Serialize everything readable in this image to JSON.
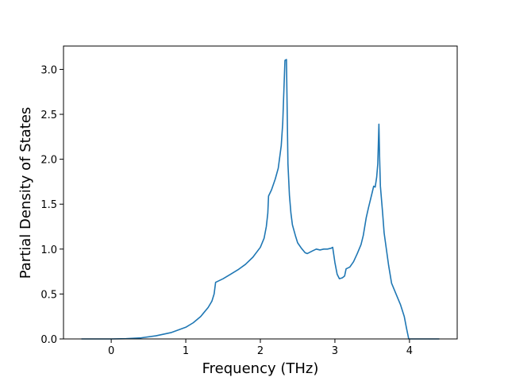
{
  "chart_data": {
    "type": "line",
    "xlabel": "Frequency (THz)",
    "ylabel": "Partial Density of States",
    "color": "#1f77b4",
    "x": [
      -0.4,
      -0.2,
      0,
      0.2,
      0.4,
      0.6,
      0.8,
      1.0,
      1.1,
      1.2,
      1.3,
      1.35,
      1.38,
      1.4,
      1.5,
      1.6,
      1.7,
      1.8,
      1.9,
      2.0,
      2.05,
      2.08,
      2.1,
      2.11,
      2.15,
      2.2,
      2.24,
      2.28,
      2.3,
      2.33,
      2.35,
      2.37,
      2.39,
      2.41,
      2.43,
      2.47,
      2.5,
      2.55,
      2.6,
      2.63,
      2.7,
      2.75,
      2.8,
      2.85,
      2.9,
      2.95,
      2.97,
      3.0,
      3.03,
      3.06,
      3.1,
      3.13,
      3.15,
      3.2,
      3.25,
      3.3,
      3.35,
      3.38,
      3.42,
      3.45,
      3.5,
      3.52,
      3.54,
      3.56,
      3.575,
      3.59,
      3.6,
      3.61,
      3.64,
      3.66,
      3.69,
      3.72,
      3.76,
      3.82,
      3.88,
      3.93,
      3.96,
      3.99,
      4.1,
      4.2,
      4.4
    ],
    "values": [
      0,
      0,
      0,
      0.003,
      0.012,
      0.035,
      0.07,
      0.13,
      0.18,
      0.25,
      0.35,
      0.42,
      0.5,
      0.63,
      0.67,
      0.72,
      0.77,
      0.83,
      0.91,
      1.02,
      1.12,
      1.25,
      1.4,
      1.59,
      1.66,
      1.78,
      1.9,
      2.15,
      2.4,
      3.1,
      3.11,
      1.95,
      1.6,
      1.4,
      1.27,
      1.15,
      1.07,
      1.01,
      0.96,
      0.95,
      0.98,
      1.0,
      0.99,
      1.0,
      1.0,
      1.01,
      1.02,
      0.85,
      0.72,
      0.67,
      0.68,
      0.7,
      0.78,
      0.8,
      0.86,
      0.95,
      1.05,
      1.15,
      1.35,
      1.46,
      1.63,
      1.7,
      1.69,
      1.8,
      1.95,
      2.39,
      2.0,
      1.7,
      1.4,
      1.18,
      1.0,
      0.82,
      0.62,
      0.5,
      0.38,
      0.25,
      0.12,
      0,
      0,
      0,
      0
    ],
    "xlim": [
      -0.64,
      4.64
    ],
    "ylim": [
      0,
      3.26
    ],
    "xticks": [
      0,
      1,
      2,
      3,
      4
    ],
    "yticks": [
      {
        "value": 0,
        "label": "0.0"
      },
      0.5,
      {
        "value": 1,
        "label": "1.0"
      },
      1.5,
      {
        "value": 2,
        "label": "2.0"
      },
      2.5,
      {
        "value": 3,
        "label": "3.0"
      }
    ]
  }
}
